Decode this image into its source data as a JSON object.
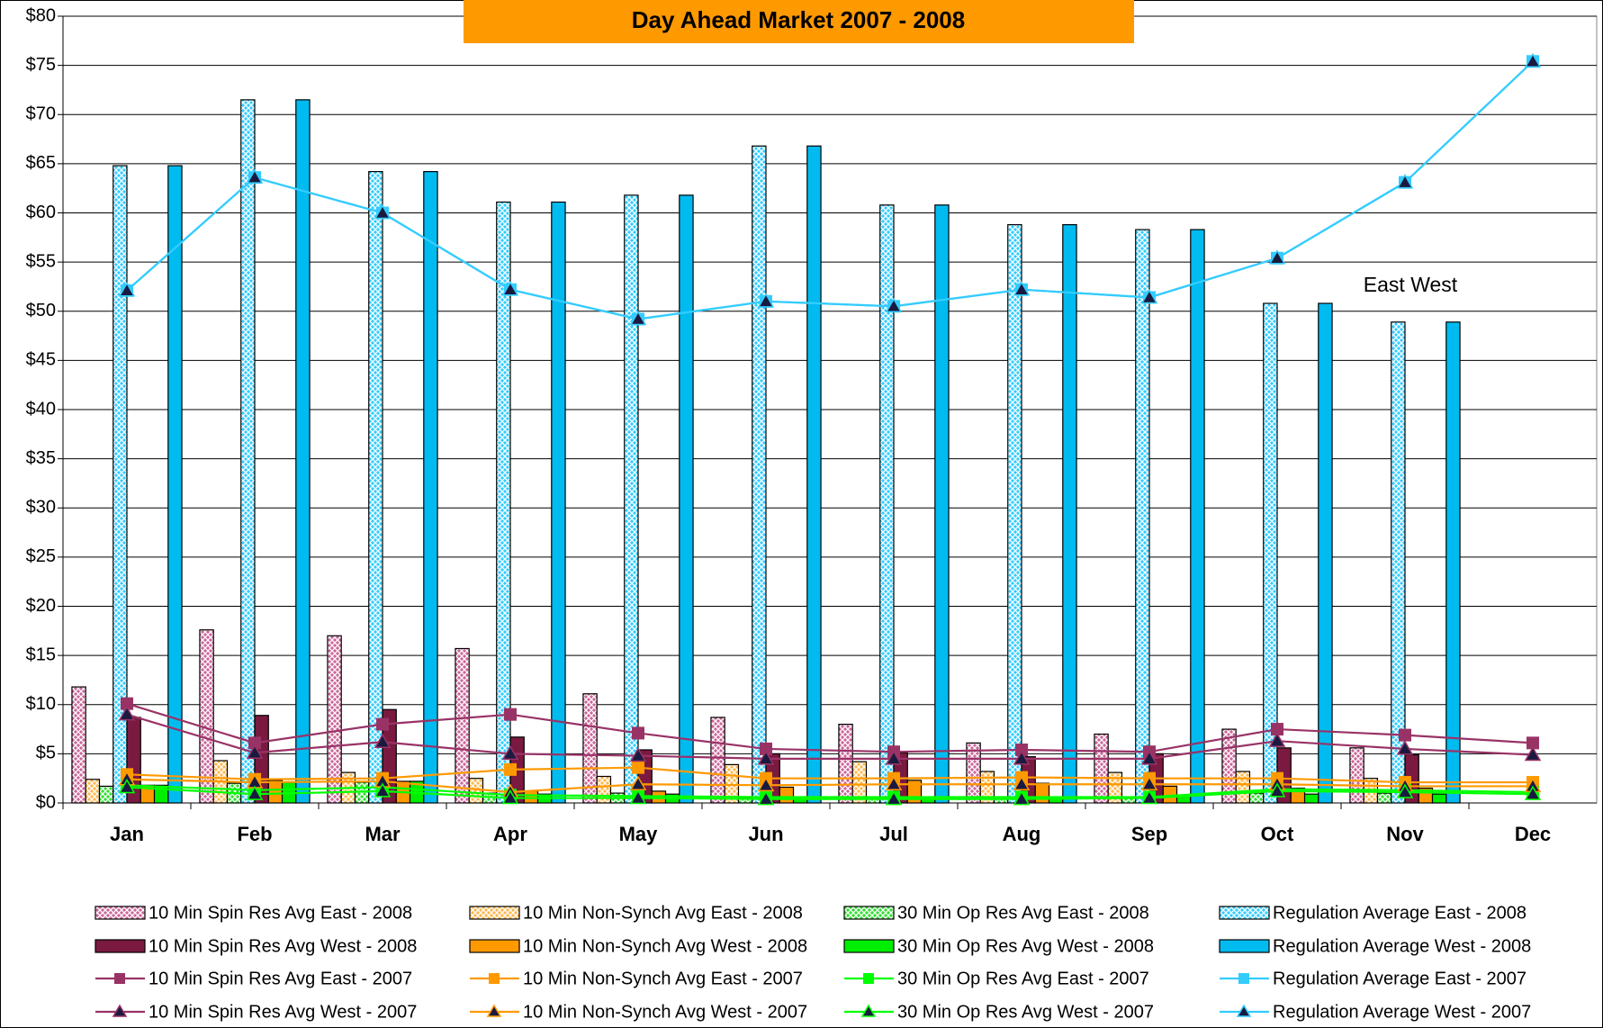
{
  "chart_data": {
    "type": "bar",
    "title": "Day Ahead Market  2007 - 2008",
    "annotation": "East West",
    "categories": [
      "Jan",
      "Feb",
      "Mar",
      "Apr",
      "May",
      "Jun",
      "Jul",
      "Aug",
      "Sep",
      "Oct",
      "Nov",
      "Dec"
    ],
    "ylim": [
      0,
      80
    ],
    "yticks": [
      {
        "value": 0,
        "label": "$0"
      },
      {
        "value": 5,
        "label": "$5"
      },
      {
        "value": 10,
        "label": "$10"
      },
      {
        "value": 15,
        "label": "$15"
      },
      {
        "value": 20,
        "label": "$20"
      },
      {
        "value": 25,
        "label": "$25"
      },
      {
        "value": 30,
        "label": "$30"
      },
      {
        "value": 35,
        "label": "$35"
      },
      {
        "value": 40,
        "label": "$40"
      },
      {
        "value": 45,
        "label": "$45"
      },
      {
        "value": 50,
        "label": "$50"
      },
      {
        "value": 55,
        "label": "$55"
      },
      {
        "value": 60,
        "label": "$60"
      },
      {
        "value": 65,
        "label": "$65"
      },
      {
        "value": 70,
        "label": "$70"
      },
      {
        "value": 75,
        "label": "$75"
      },
      {
        "value": 80,
        "label": "$80"
      }
    ],
    "grid": true,
    "series": [
      {
        "name": "10 Min Spin Res Avg East - 2008",
        "type": "bar",
        "pattern": "crosshatch",
        "color": "#cc6699",
        "values": [
          11.8,
          17.6,
          17,
          15.7,
          11.1,
          8.7,
          8,
          6.1,
          7,
          7.5,
          5.6,
          null
        ]
      },
      {
        "name": "10 Min Non-Synch Avg East - 2008",
        "type": "bar",
        "pattern": "crosshatch",
        "color": "#ffb84d",
        "values": [
          2.4,
          4.3,
          3.1,
          2.5,
          2.7,
          3.9,
          4.2,
          3.2,
          3.1,
          3.2,
          2.5,
          null
        ]
      },
      {
        "name": "30 Min Op Res Avg East - 2008",
        "type": "bar",
        "pattern": "crosshatch",
        "color": "#33dd33",
        "values": [
          1.7,
          2.0,
          2.1,
          1.0,
          1.0,
          0.5,
          0.5,
          0.5,
          0.5,
          1.0,
          1.0,
          null
        ]
      },
      {
        "name": "Regulation Average East - 2008",
        "type": "bar",
        "pattern": "crosshatch",
        "color": "#33ccff",
        "values": [
          64.8,
          71.5,
          64.2,
          61.1,
          61.8,
          66.8,
          60.8,
          58.8,
          58.3,
          50.8,
          48.9,
          null
        ]
      },
      {
        "name": "10 Min Spin Res Avg West - 2008",
        "type": "bar",
        "pattern": "solid",
        "color": "#7a1a40",
        "values": [
          8.7,
          8.9,
          9.5,
          6.7,
          5.4,
          5.0,
          5.1,
          4.7,
          5.0,
          5.6,
          4.9,
          null
        ]
      },
      {
        "name": "10 Min Non-Synch Avg West - 2008",
        "type": "bar",
        "pattern": "solid",
        "color": "#ff9900",
        "values": [
          1.8,
          2.3,
          2.2,
          1.2,
          1.2,
          1.6,
          2.3,
          2.0,
          1.7,
          1.5,
          1.5,
          null
        ]
      },
      {
        "name": "30 Min Op Res Avg West - 2008",
        "type": "bar",
        "pattern": "solid",
        "color": "#00ee00",
        "values": [
          1.8,
          2.1,
          2.2,
          0.9,
          0.9,
          0.5,
          0.5,
          0.5,
          0.8,
          0.9,
          0.9,
          null
        ]
      },
      {
        "name": "Regulation Average West - 2008",
        "type": "bar",
        "pattern": "solid",
        "color": "#00bbf0",
        "values": [
          64.8,
          71.5,
          64.2,
          61.1,
          61.8,
          66.8,
          60.8,
          58.8,
          58.3,
          50.8,
          48.9,
          null
        ]
      },
      {
        "name": "10 Min Spin Res Avg East - 2007",
        "type": "line",
        "marker": "square",
        "color": "#993366",
        "values": [
          10.1,
          6.1,
          8.0,
          9.0,
          7.1,
          5.5,
          5.2,
          5.4,
          5.2,
          7.5,
          6.9,
          6.1
        ]
      },
      {
        "name": "10 Min Non-Synch Avg East - 2007",
        "type": "line",
        "marker": "square",
        "color": "#ff9900",
        "values": [
          2.9,
          2.4,
          2.5,
          3.4,
          3.6,
          2.5,
          2.5,
          2.6,
          2.5,
          2.5,
          2.1,
          2.1
        ]
      },
      {
        "name": "30 Min Op Res Avg East - 2007",
        "type": "line",
        "marker": "square",
        "color": "#00ff00",
        "values": [
          1.8,
          1.3,
          1.6,
          0.8,
          0.7,
          0.6,
          0.6,
          0.6,
          0.6,
          1.4,
          1.3,
          1.1
        ]
      },
      {
        "name": "Regulation Average East - 2007",
        "type": "line",
        "marker": "square",
        "color": "#33ccff",
        "values": [
          52.1,
          63.6,
          60.0,
          52.2,
          49.2,
          51.0,
          50.5,
          52.2,
          51.4,
          55.4,
          63.1,
          75.4
        ]
      },
      {
        "name": "10 Min Spin Res Avg West - 2007",
        "type": "line",
        "marker": "triangle",
        "color": "#993366",
        "values": [
          9.0,
          5.1,
          6.2,
          5.0,
          4.8,
          4.5,
          4.5,
          4.5,
          4.5,
          6.3,
          5.5,
          4.9
        ]
      },
      {
        "name": "10 Min Non-Synch Avg West - 2007",
        "type": "line",
        "marker": "triangle",
        "color": "#ff9900",
        "values": [
          2.4,
          2.1,
          2.2,
          1.1,
          1.9,
          1.8,
          1.9,
          1.9,
          1.9,
          1.9,
          1.7,
          1.7
        ]
      },
      {
        "name": "30 Min Op Res Avg West - 2007",
        "type": "line",
        "marker": "triangle",
        "color": "#00ff00",
        "values": [
          1.6,
          0.9,
          1.2,
          0.5,
          0.5,
          0.4,
          0.4,
          0.4,
          0.5,
          1.2,
          1.1,
          0.9
        ]
      },
      {
        "name": "Regulation Average West - 2007",
        "type": "line",
        "marker": "triangle",
        "color": "#33ccff",
        "values": [
          52.1,
          63.6,
          60.0,
          52.2,
          49.2,
          51.0,
          50.5,
          52.2,
          51.4,
          55.4,
          63.1,
          75.4
        ]
      }
    ]
  }
}
